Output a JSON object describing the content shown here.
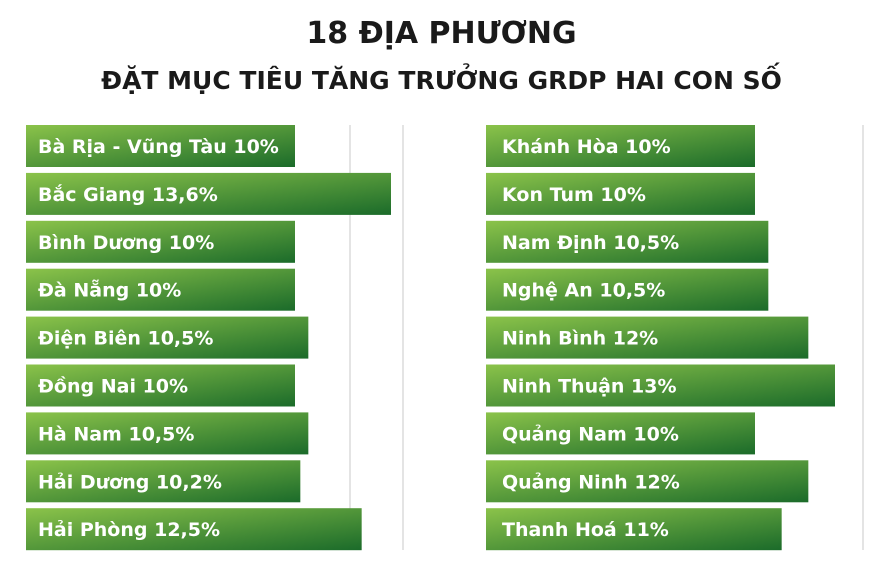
{
  "title": "18 ĐỊA PHƯƠNG",
  "subtitle": "ĐẶT MỤC TIÊU TĂNG TRƯỞNG GRDP HAI CON SỐ",
  "colors": {
    "bar_light": "#8bc34a",
    "bar_dark": "#1b6b2a",
    "grid": "#c8c8c8",
    "title": "#1a1a1a"
  },
  "chart_data": [
    {
      "type": "bar",
      "orientation": "horizontal",
      "title": "",
      "xlabel": "",
      "ylabel": "",
      "grid": true,
      "categories": [
        "Bà Rịa - Vũng Tàu",
        "Bắc Giang",
        "Bình Dương",
        "Đà Nẵng",
        "Điện Biên",
        "Đồng Nai",
        "Hà Nam",
        "Hải Dương",
        "Hải Phòng"
      ],
      "values": [
        10,
        13.6,
        10,
        10,
        10.5,
        10,
        10.5,
        10.2,
        12.5
      ],
      "labels": [
        "Bà Rịa - Vũng Tàu 10%",
        "Bắc Giang 13,6%",
        "Bình Dương 10%",
        "Đà Nẵng 10%",
        "Điện Biên 10,5%",
        "Đồng Nai 10%",
        "Hà Nam 10,5%",
        "Hải Dương 10,2%",
        "Hải Phòng 12,5%"
      ]
    },
    {
      "type": "bar",
      "orientation": "horizontal",
      "title": "",
      "xlabel": "",
      "ylabel": "",
      "grid": true,
      "categories": [
        "Khánh Hòa",
        "Kon Tum",
        "Nam Định",
        "Nghệ An",
        "Ninh Bình",
        "Ninh Thuận",
        "Quảng Nam",
        "Quảng Ninh",
        "Thanh Hoá"
      ],
      "values": [
        10,
        10,
        10.5,
        10.5,
        12,
        13,
        10,
        12,
        11
      ],
      "labels": [
        "Khánh Hòa 10%",
        "Kon Tum 10%",
        "Nam Định 10,5%",
        "Nghệ An 10,5%",
        "Ninh Bình 12%",
        "Ninh Thuận 13%",
        "Quảng Nam 10%",
        "Quảng Ninh 12%",
        "Thanh Hoá 11%"
      ]
    }
  ]
}
